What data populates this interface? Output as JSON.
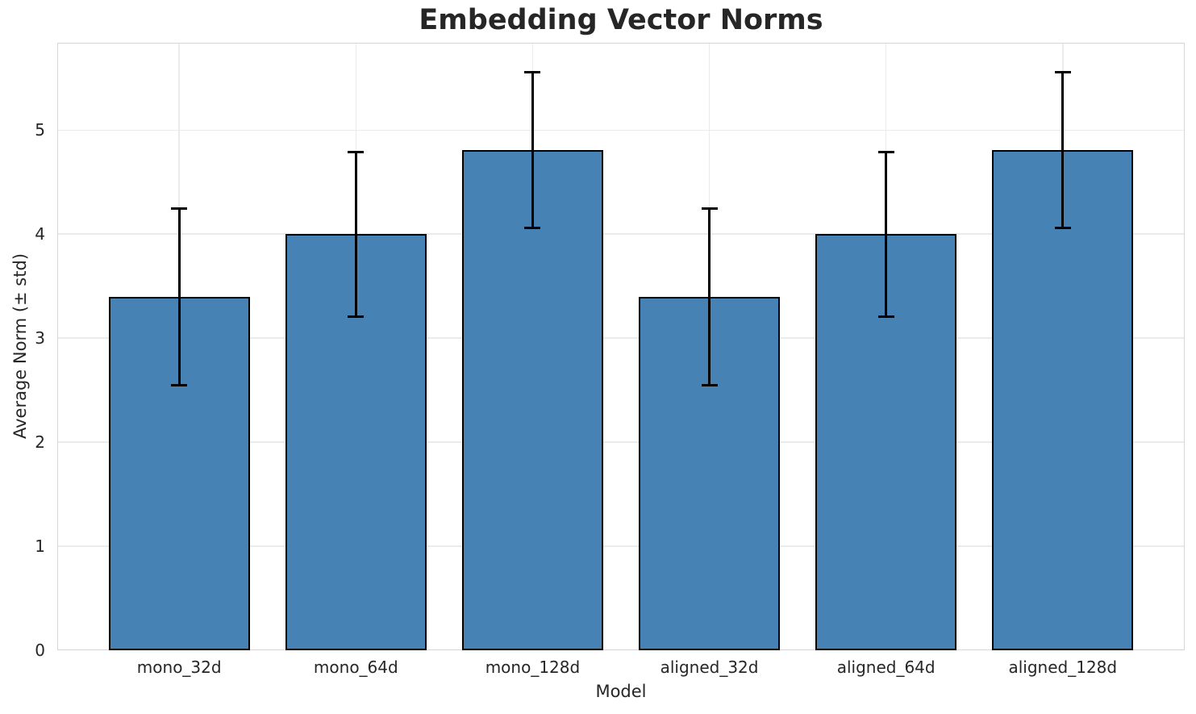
{
  "colors": {
    "bar_fill": "#4682b4",
    "bar_edge": "#000000",
    "error_bar": "#000000",
    "grid": "#ebebeb",
    "spine": "#d6d6d6",
    "text": "#262626",
    "background": "#ffffff"
  },
  "chart_data": {
    "type": "bar",
    "title": "Embedding Vector Norms",
    "xlabel": "Model",
    "ylabel": "Average Norm (± std)",
    "categories": [
      "mono_32d",
      "mono_64d",
      "mono_128d",
      "aligned_32d",
      "aligned_64d",
      "aligned_128d"
    ],
    "values": [
      3.4,
      4.0,
      4.81,
      3.4,
      4.0,
      4.81
    ],
    "std": [
      0.85,
      0.79,
      0.75,
      0.85,
      0.79,
      0.75
    ],
    "error_upper": [
      4.25,
      4.79,
      5.56,
      4.25,
      4.79,
      5.56
    ],
    "error_lower": [
      2.55,
      3.21,
      4.06,
      2.55,
      3.21,
      4.06
    ],
    "y_ticks": [
      0,
      1,
      2,
      3,
      4,
      5
    ],
    "ylim": [
      0,
      5.84
    ],
    "xlim": [
      -0.69,
      5.69
    ],
    "bar_width": 0.8,
    "grid": true,
    "legend": false,
    "bar_color": "#4682b4",
    "bar_edge_color": "#000000",
    "error_color": "#000000"
  }
}
